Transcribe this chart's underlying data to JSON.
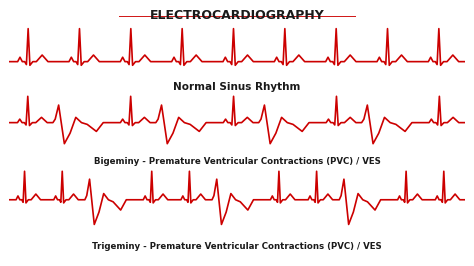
{
  "title": "ELECTROCARDIOGRAPHY",
  "title_color": "#1a1a1a",
  "title_underline_color": "#cc0000",
  "ecg_color": "#cc0000",
  "label1": "Normal Sinus Rhythm",
  "label2": "Bigeminy - Premature Ventricular Contractions (PVC) / VES",
  "label3": "Trigeminy - Premature Ventricular Contractions (PVC) / VES",
  "background": "#ffffff",
  "linewidth": 1.2
}
